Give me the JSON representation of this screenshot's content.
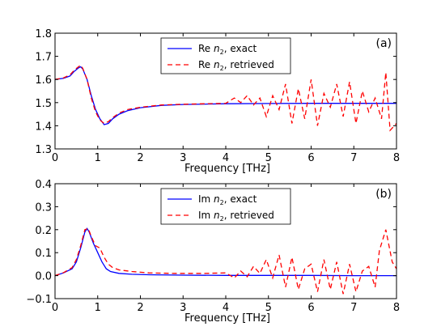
{
  "chart_data": [
    {
      "type": "line",
      "panel_label": "(a)",
      "xlabel": "Frequency [THz]",
      "ylabel": "",
      "xlim": [
        0,
        8
      ],
      "ylim": [
        1.3,
        1.8
      ],
      "xticks": [
        "0",
        "1",
        "2",
        "3",
        "4",
        "5",
        "6",
        "7",
        "8"
      ],
      "yticks": [
        "1.3",
        "1.4",
        "1.5",
        "1.6",
        "1.7",
        "1.8"
      ],
      "legend_position": "top-center",
      "series": [
        {
          "name": "Re n2, exact",
          "legend_main": "Re ",
          "legend_var": "n",
          "legend_sub": "2",
          "legend_tail": ", exact",
          "color": "#0000ff",
          "dash": "solid",
          "x": [
            0,
            0.2,
            0.35,
            0.45,
            0.55,
            0.6,
            0.65,
            0.75,
            0.85,
            0.95,
            1.05,
            1.15,
            1.25,
            1.35,
            1.5,
            1.7,
            2.0,
            2.5,
            3.0,
            4.0,
            5.0,
            6.0,
            7.0,
            8.0
          ],
          "y": [
            1.6,
            1.605,
            1.615,
            1.635,
            1.65,
            1.655,
            1.645,
            1.6,
            1.53,
            1.47,
            1.43,
            1.405,
            1.41,
            1.43,
            1.45,
            1.465,
            1.478,
            1.488,
            1.492,
            1.495,
            1.496,
            1.497,
            1.497,
            1.497
          ]
        },
        {
          "name": "Re n2, retrieved",
          "legend_main": "Re ",
          "legend_var": "n",
          "legend_sub": "2",
          "legend_tail": ", retrieved",
          "color": "#ff0000",
          "dash": "dashed",
          "x": [
            0,
            0.2,
            0.35,
            0.45,
            0.55,
            0.6,
            0.65,
            0.75,
            0.85,
            0.95,
            1.05,
            1.15,
            1.25,
            1.35,
            1.5,
            1.7,
            2.0,
            2.5,
            3.0,
            3.5,
            4.0,
            4.2,
            4.35,
            4.5,
            4.65,
            4.8,
            4.95,
            5.1,
            5.25,
            5.4,
            5.55,
            5.7,
            5.85,
            6.0,
            6.15,
            6.3,
            6.45,
            6.6,
            6.75,
            6.9,
            7.05,
            7.2,
            7.35,
            7.5,
            7.65,
            7.75,
            7.85,
            8.0
          ],
          "y": [
            1.6,
            1.607,
            1.62,
            1.64,
            1.655,
            1.662,
            1.648,
            1.6,
            1.52,
            1.46,
            1.425,
            1.41,
            1.418,
            1.435,
            1.455,
            1.47,
            1.48,
            1.49,
            1.493,
            1.495,
            1.497,
            1.52,
            1.5,
            1.53,
            1.49,
            1.52,
            1.44,
            1.53,
            1.47,
            1.58,
            1.41,
            1.56,
            1.43,
            1.6,
            1.4,
            1.54,
            1.48,
            1.58,
            1.44,
            1.59,
            1.41,
            1.55,
            1.46,
            1.52,
            1.43,
            1.63,
            1.38,
            1.41
          ]
        }
      ]
    },
    {
      "type": "line",
      "panel_label": "(b)",
      "xlabel": "Frequency [THz]",
      "ylabel": "",
      "xlim": [
        0,
        8
      ],
      "ylim": [
        -0.1,
        0.4
      ],
      "xticks": [
        "0",
        "1",
        "2",
        "3",
        "4",
        "5",
        "6",
        "7",
        "8"
      ],
      "yticks": [
        "−0.1",
        "0.0",
        "0.1",
        "0.2",
        "0.3",
        "0.4"
      ],
      "legend_position": "top-center",
      "series": [
        {
          "name": "Im n2, exact",
          "legend_main": "Im ",
          "legend_var": "n",
          "legend_sub": "2",
          "legend_tail": ", exact",
          "color": "#0000ff",
          "dash": "solid",
          "x": [
            0,
            0.2,
            0.4,
            0.5,
            0.6,
            0.7,
            0.75,
            0.8,
            0.9,
            1.0,
            1.1,
            1.2,
            1.3,
            1.5,
            1.8,
            2.2,
            3.0,
            4.0,
            5.0,
            6.0,
            7.0,
            8.0
          ],
          "y": [
            0.0,
            0.012,
            0.03,
            0.06,
            0.12,
            0.19,
            0.205,
            0.19,
            0.14,
            0.1,
            0.06,
            0.03,
            0.018,
            0.01,
            0.006,
            0.004,
            0.002,
            0.001,
            0.001,
            0.001,
            0.0,
            0.0
          ],
          "y_scale": 1
        },
        {
          "name": "Im n2, retrieved",
          "legend_main": "Im ",
          "legend_var": "n",
          "legend_sub": "2",
          "legend_tail": ", retrieved",
          "color": "#ff0000",
          "dash": "dashed",
          "x": [
            0,
            0.2,
            0.4,
            0.5,
            0.6,
            0.7,
            0.78,
            0.85,
            0.95,
            1.05,
            1.15,
            1.25,
            1.35,
            1.5,
            1.8,
            2.2,
            2.8,
            3.5,
            4.0,
            4.2,
            4.35,
            4.5,
            4.65,
            4.8,
            4.95,
            5.1,
            5.25,
            5.4,
            5.55,
            5.7,
            5.85,
            6.0,
            6.15,
            6.3,
            6.45,
            6.6,
            6.75,
            6.9,
            7.05,
            7.2,
            7.35,
            7.5,
            7.6,
            7.75,
            7.9,
            8.0
          ],
          "y": [
            0.0,
            0.013,
            0.035,
            0.07,
            0.13,
            0.2,
            0.205,
            0.17,
            0.13,
            0.12,
            0.08,
            0.05,
            0.035,
            0.025,
            0.018,
            0.012,
            0.01,
            0.01,
            0.012,
            -0.01,
            0.02,
            -0.005,
            0.04,
            0.01,
            0.07,
            -0.01,
            0.09,
            -0.05,
            0.08,
            -0.06,
            0.03,
            0.05,
            -0.07,
            0.07,
            -0.06,
            0.06,
            -0.08,
            0.05,
            -0.07,
            0.02,
            0.04,
            -0.05,
            0.11,
            0.2,
            0.06,
            0.03
          ]
        }
      ]
    }
  ]
}
